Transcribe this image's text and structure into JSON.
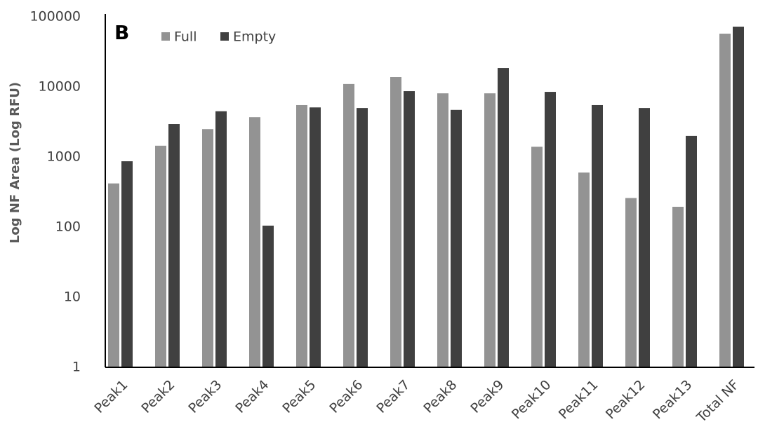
{
  "chart_data": {
    "type": "bar",
    "log_scale": true,
    "grid": false,
    "annotation": "B",
    "y_label": "Log NF Area (Log RFU)",
    "categories": [
      "Peak1",
      "Peak2",
      "Peak3",
      "Peak4",
      "Peak5",
      "Peak6",
      "Peak7",
      "Peak8",
      "Peak9",
      "Peak10",
      "Peak11",
      "Peak12",
      "Peak13",
      "Total NF"
    ],
    "series": [
      {
        "name": "Full",
        "color": "#939393",
        "values": [
          420,
          1450,
          2500,
          3700,
          5500,
          11000,
          13800,
          8100,
          8100,
          1400,
          600,
          260,
          195,
          57500
        ]
      },
      {
        "name": "Empty",
        "color": "#404040",
        "values": [
          870,
          2950,
          4500,
          105,
          5100,
          5000,
          8700,
          4700,
          18600,
          8500,
          5500,
          5000,
          2000,
          72400
        ]
      }
    ],
    "ylim": [
      1,
      100000
    ],
    "yticks": [
      1,
      10,
      100,
      1000,
      10000,
      100000
    ]
  }
}
